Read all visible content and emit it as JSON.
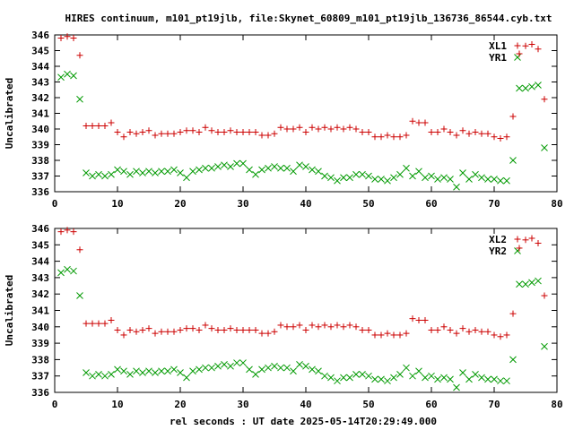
{
  "title": "HIRES continuum, m101_pt19jlb, file:Skynet_60809_m101_pt19jlb_136736_86544.cyb.txt",
  "xlabel": "rel seconds : UT date 2025-05-14T20:29:49.000",
  "colors": {
    "red": "#cc0000",
    "green": "#009900"
  },
  "chart_data": [
    {
      "type": "scatter",
      "ylabel": "Uncalibrated",
      "xlim": [
        0,
        80
      ],
      "ylim": [
        336,
        346
      ],
      "xticks": [
        "0",
        "10",
        "20",
        "30",
        "40",
        "50",
        "60",
        "70",
        "80"
      ],
      "yticks": [
        "336",
        "337",
        "338",
        "339",
        "340",
        "341",
        "342",
        "343",
        "344",
        "345",
        "346"
      ],
      "legend_position": "top-right",
      "series": [
        {
          "name": "XL1",
          "marker": "plus",
          "color": "#cc0000",
          "x": [
            1,
            2,
            3,
            4,
            5,
            6,
            7,
            8,
            9,
            10,
            11,
            12,
            13,
            14,
            15,
            16,
            17,
            18,
            19,
            20,
            21,
            22,
            23,
            24,
            25,
            26,
            27,
            28,
            29,
            30,
            31,
            32,
            33,
            34,
            35,
            36,
            37,
            38,
            39,
            40,
            41,
            42,
            43,
            44,
            45,
            46,
            47,
            48,
            49,
            50,
            51,
            52,
            53,
            54,
            55,
            56,
            57,
            58,
            59,
            60,
            61,
            62,
            63,
            64,
            65,
            66,
            67,
            68,
            69,
            70,
            71,
            72,
            73,
            74,
            75,
            76,
            77,
            78
          ],
          "y": [
            345.8,
            345.9,
            345.8,
            344.7,
            340.2,
            340.2,
            340.2,
            340.2,
            340.4,
            339.8,
            339.5,
            339.8,
            339.7,
            339.8,
            339.9,
            339.6,
            339.7,
            339.7,
            339.7,
            339.8,
            339.9,
            339.9,
            339.8,
            340.1,
            339.9,
            339.8,
            339.8,
            339.9,
            339.8,
            339.8,
            339.8,
            339.8,
            339.6,
            339.6,
            339.7,
            340.1,
            340.0,
            340.0,
            340.1,
            339.8,
            340.1,
            340.0,
            340.1,
            340.0,
            340.1,
            340.0,
            340.1,
            340.0,
            339.8,
            339.8,
            339.5,
            339.5,
            339.6,
            339.5,
            339.5,
            339.6,
            340.5,
            340.4,
            340.4,
            339.8,
            339.8,
            340.0,
            339.8,
            339.6,
            339.9,
            339.7,
            339.8,
            339.7,
            339.7,
            339.5,
            339.4,
            339.5,
            340.8,
            344.8,
            345.3,
            345.4,
            345.1,
            341.9
          ]
        },
        {
          "name": "YR1",
          "marker": "cross",
          "color": "#009900",
          "x": [
            1,
            2,
            3,
            4,
            5,
            6,
            7,
            8,
            9,
            10,
            11,
            12,
            13,
            14,
            15,
            16,
            17,
            18,
            19,
            20,
            21,
            22,
            23,
            24,
            25,
            26,
            27,
            28,
            29,
            30,
            31,
            32,
            33,
            34,
            35,
            36,
            37,
            38,
            39,
            40,
            41,
            42,
            43,
            44,
            45,
            46,
            47,
            48,
            49,
            50,
            51,
            52,
            53,
            54,
            55,
            56,
            57,
            58,
            59,
            60,
            61,
            62,
            63,
            64,
            65,
            66,
            67,
            68,
            69,
            70,
            71,
            72,
            73,
            74,
            75,
            76,
            77,
            78
          ],
          "y": [
            343.3,
            343.5,
            343.4,
            341.9,
            337.2,
            337.0,
            337.1,
            337.0,
            337.1,
            337.4,
            337.3,
            337.1,
            337.3,
            337.2,
            337.3,
            337.2,
            337.3,
            337.3,
            337.4,
            337.2,
            336.9,
            337.3,
            337.4,
            337.5,
            337.5,
            337.6,
            337.7,
            337.6,
            337.8,
            337.8,
            337.4,
            337.1,
            337.4,
            337.5,
            337.6,
            337.5,
            337.5,
            337.3,
            337.7,
            337.6,
            337.4,
            337.3,
            337.0,
            336.9,
            336.7,
            336.9,
            336.9,
            337.1,
            337.1,
            337.0,
            336.8,
            336.8,
            336.7,
            336.9,
            337.1,
            337.5,
            337.0,
            337.3,
            336.9,
            337.0,
            336.8,
            336.9,
            336.8,
            336.3,
            337.2,
            336.8,
            337.1,
            336.9,
            336.8,
            336.8,
            336.7,
            336.7,
            338.0,
            342.6,
            342.6,
            342.7,
            342.8,
            338.8
          ]
        }
      ]
    },
    {
      "type": "scatter",
      "ylabel": "Uncalibrated",
      "xlim": [
        0,
        80
      ],
      "ylim": [
        336,
        346
      ],
      "xticks": [
        "0",
        "10",
        "20",
        "30",
        "40",
        "50",
        "60",
        "70",
        "80"
      ],
      "yticks": [
        "336",
        "337",
        "338",
        "339",
        "340",
        "341",
        "342",
        "343",
        "344",
        "345",
        "346"
      ],
      "legend_position": "top-right",
      "series": [
        {
          "name": "XL2",
          "marker": "plus",
          "color": "#cc0000",
          "x": [
            1,
            2,
            3,
            4,
            5,
            6,
            7,
            8,
            9,
            10,
            11,
            12,
            13,
            14,
            15,
            16,
            17,
            18,
            19,
            20,
            21,
            22,
            23,
            24,
            25,
            26,
            27,
            28,
            29,
            30,
            31,
            32,
            33,
            34,
            35,
            36,
            37,
            38,
            39,
            40,
            41,
            42,
            43,
            44,
            45,
            46,
            47,
            48,
            49,
            50,
            51,
            52,
            53,
            54,
            55,
            56,
            57,
            58,
            59,
            60,
            61,
            62,
            63,
            64,
            65,
            66,
            67,
            68,
            69,
            70,
            71,
            72,
            73,
            74,
            75,
            76,
            77,
            78
          ],
          "y": [
            345.8,
            345.9,
            345.8,
            344.7,
            340.2,
            340.2,
            340.2,
            340.2,
            340.4,
            339.8,
            339.5,
            339.8,
            339.7,
            339.8,
            339.9,
            339.6,
            339.7,
            339.7,
            339.7,
            339.8,
            339.9,
            339.9,
            339.8,
            340.1,
            339.9,
            339.8,
            339.8,
            339.9,
            339.8,
            339.8,
            339.8,
            339.8,
            339.6,
            339.6,
            339.7,
            340.1,
            340.0,
            340.0,
            340.1,
            339.8,
            340.1,
            340.0,
            340.1,
            340.0,
            340.1,
            340.0,
            340.1,
            340.0,
            339.8,
            339.8,
            339.5,
            339.5,
            339.6,
            339.5,
            339.5,
            339.6,
            340.5,
            340.4,
            340.4,
            339.8,
            339.8,
            340.0,
            339.8,
            339.6,
            339.9,
            339.7,
            339.8,
            339.7,
            339.7,
            339.5,
            339.4,
            339.5,
            340.8,
            344.8,
            345.3,
            345.4,
            345.1,
            341.9
          ]
        },
        {
          "name": "YR2",
          "marker": "cross",
          "color": "#009900",
          "x": [
            1,
            2,
            3,
            4,
            5,
            6,
            7,
            8,
            9,
            10,
            11,
            12,
            13,
            14,
            15,
            16,
            17,
            18,
            19,
            20,
            21,
            22,
            23,
            24,
            25,
            26,
            27,
            28,
            29,
            30,
            31,
            32,
            33,
            34,
            35,
            36,
            37,
            38,
            39,
            40,
            41,
            42,
            43,
            44,
            45,
            46,
            47,
            48,
            49,
            50,
            51,
            52,
            53,
            54,
            55,
            56,
            57,
            58,
            59,
            60,
            61,
            62,
            63,
            64,
            65,
            66,
            67,
            68,
            69,
            70,
            71,
            72,
            73,
            74,
            75,
            76,
            77,
            78
          ],
          "y": [
            343.3,
            343.5,
            343.4,
            341.9,
            337.2,
            337.0,
            337.1,
            337.0,
            337.1,
            337.4,
            337.3,
            337.1,
            337.3,
            337.2,
            337.3,
            337.2,
            337.3,
            337.3,
            337.4,
            337.2,
            336.9,
            337.3,
            337.4,
            337.5,
            337.5,
            337.6,
            337.7,
            337.6,
            337.8,
            337.8,
            337.4,
            337.1,
            337.4,
            337.5,
            337.6,
            337.5,
            337.5,
            337.3,
            337.7,
            337.6,
            337.4,
            337.3,
            337.0,
            336.9,
            336.7,
            336.9,
            336.9,
            337.1,
            337.1,
            337.0,
            336.8,
            336.8,
            336.7,
            336.9,
            337.1,
            337.5,
            337.0,
            337.3,
            336.9,
            337.0,
            336.8,
            336.9,
            336.8,
            336.3,
            337.2,
            336.8,
            337.1,
            336.9,
            336.8,
            336.8,
            336.7,
            336.7,
            338.0,
            342.6,
            342.6,
            342.7,
            342.8,
            338.8
          ]
        }
      ]
    }
  ]
}
